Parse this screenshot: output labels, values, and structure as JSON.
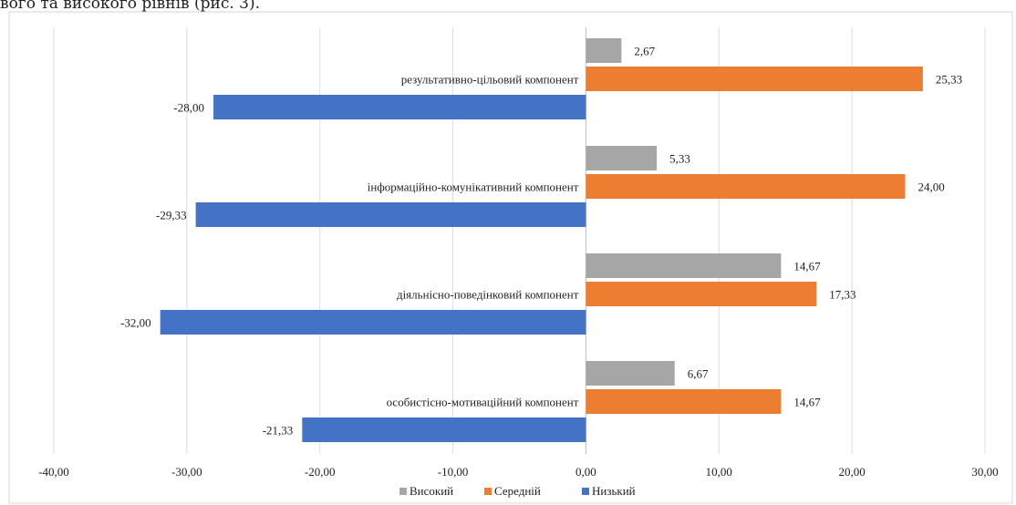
{
  "caption": "вого та високого рівнів (рис. 3).",
  "chart_data": {
    "type": "bar",
    "orientation": "horizontal",
    "categories": [
      "результативно-цільовий компонент",
      "інформаційно-комунікативний  компонент",
      "діяльнісно-поведінковий компонент",
      "особистісно-мотиваційний компонент"
    ],
    "series": [
      {
        "name": "Високий",
        "color": "#a6a6a6",
        "values": [
          2.67,
          5.33,
          14.67,
          6.67
        ],
        "labels": [
          "2,67",
          "5,33",
          "14,67",
          "6,67"
        ]
      },
      {
        "name": "Середній",
        "color": "#ed7d31",
        "values": [
          25.33,
          24.0,
          17.33,
          14.67
        ],
        "labels": [
          "25,33",
          "24,00",
          "17,33",
          "14,67"
        ]
      },
      {
        "name": "Низький",
        "color": "#4472c4",
        "values": [
          -28.0,
          -29.33,
          -32.0,
          -21.33
        ],
        "labels": [
          "-28,00",
          "-29,33",
          "-32,00",
          "-21,33"
        ]
      }
    ],
    "xlim": [
      -40,
      30
    ],
    "xticks": [
      -40,
      -30,
      -20,
      -10,
      0,
      10,
      20,
      30
    ],
    "xtick_labels": [
      "-40,00",
      "-30,00",
      "-20,00",
      "-10,00",
      "0,00",
      "10,00",
      "20,00",
      "30,00"
    ],
    "grid": true,
    "legend_position": "bottom"
  }
}
